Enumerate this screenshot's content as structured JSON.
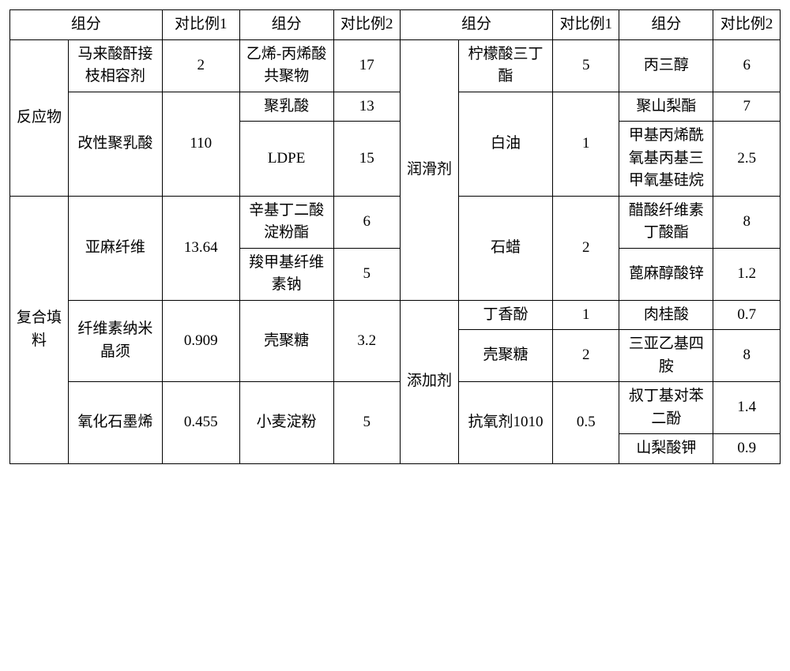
{
  "headers": {
    "component": "组分",
    "ratio1": "对比例1",
    "ratio2": "对比例2"
  },
  "left": {
    "reactants": {
      "label": "反应物",
      "rows": [
        {
          "sub": "马来酸酐接枝相容剂",
          "v1": "2",
          "comp2": "乙烯-丙烯酸共聚物",
          "v2": "17"
        },
        {
          "sub": "改性聚乳酸",
          "v1": "110",
          "comp2a": "聚乳酸",
          "v2a": "13",
          "comp2b": "LDPE",
          "v2b": "15"
        }
      ]
    },
    "filler": {
      "label": "复合填料",
      "rows": [
        {
          "sub": "亚麻纤维",
          "v1": "13.64",
          "comp2a": "辛基丁二酸淀粉酯",
          "v2a": "6",
          "comp2b": "羧甲基纤维素钠",
          "v2b": "5"
        },
        {
          "sub": "纤维素纳米晶须",
          "v1": "0.909",
          "comp2": "壳聚糖",
          "v2": "3.2"
        },
        {
          "sub": "氧化石墨烯",
          "v1": "0.455",
          "comp2": "小麦淀粉",
          "v2": "5"
        }
      ]
    }
  },
  "right": {
    "lubricant": {
      "label": "润滑剂",
      "rows": [
        {
          "sub": "柠檬酸三丁酯",
          "v1": "5",
          "comp2": "丙三醇",
          "v2": "6"
        },
        {
          "sub": "白油",
          "v1": "1",
          "comp2a": "聚山梨酯",
          "v2a": "7",
          "comp2b": "甲基丙烯酰氧基丙基三甲氧基硅烷",
          "v2b": "2.5"
        },
        {
          "sub": "石蜡",
          "v1": "2",
          "comp2a": "醋酸纤维素丁酸酯",
          "v2a": "8",
          "comp2b": "蓖麻醇酸锌",
          "v2b": "1.2"
        }
      ]
    },
    "additive": {
      "label": "添加剂",
      "rows": [
        {
          "sub": "丁香酚",
          "v1": "1",
          "comp2": "肉桂酸",
          "v2": "0.7"
        },
        {
          "sub": "壳聚糖",
          "v1": "2",
          "comp2": "三亚乙基四胺",
          "v2": "8"
        },
        {
          "sub": "抗氧剂1010",
          "v1": "0.5",
          "comp2a": "叔丁基对苯二酚",
          "v2a": "1.4",
          "comp2b": "山梨酸钾",
          "v2b": "0.9"
        }
      ]
    }
  },
  "style": {
    "border_color": "#000000",
    "background": "#ffffff",
    "font_family": "SimSun",
    "font_size_pt": 14,
    "cell_align": "center"
  }
}
